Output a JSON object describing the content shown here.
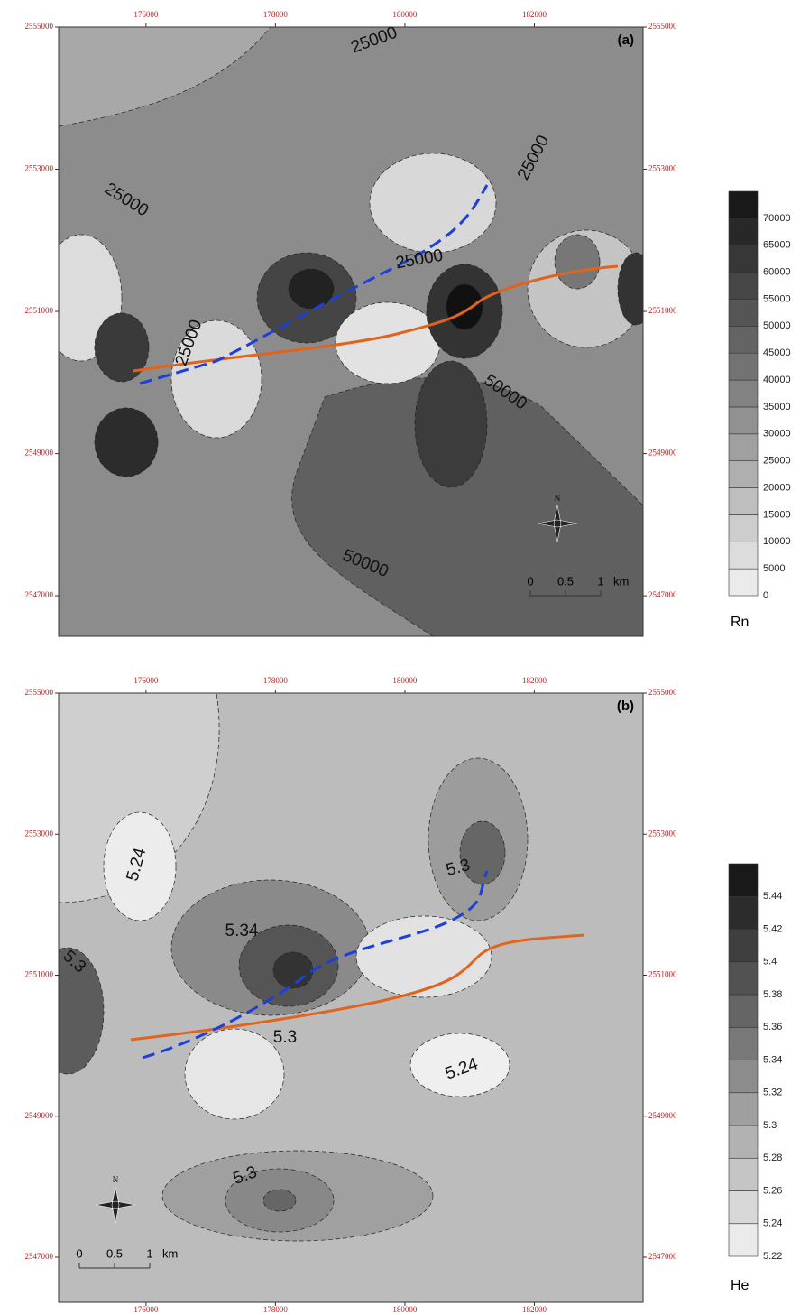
{
  "panels": [
    {
      "label": "(a)",
      "variable": "Rn",
      "xlim": [
        174650,
        183680
      ],
      "ylim": [
        2546430,
        2555000
      ],
      "xticks": [
        176000,
        178000,
        180000,
        182000
      ],
      "yticks": [
        2547000,
        2549000,
        2551000,
        2553000,
        2555000
      ],
      "legend_levels": [
        0,
        5000,
        10000,
        15000,
        20000,
        25000,
        30000,
        35000,
        40000,
        45000,
        50000,
        55000,
        60000,
        65000,
        70000
      ],
      "contour_labels": [
        25000,
        25000,
        25000,
        25000,
        25000,
        50000,
        50000
      ],
      "north": "N",
      "scale_ticks": [
        0,
        0.5,
        1
      ],
      "scale_unit": "km"
    },
    {
      "label": "(b)",
      "variable": "He",
      "xlim": [
        174650,
        183680
      ],
      "ylim": [
        2546360,
        2555000
      ],
      "xticks": [
        176000,
        178000,
        180000,
        182000
      ],
      "yticks": [
        2547000,
        2549000,
        2551000,
        2553000,
        2555000
      ],
      "legend_levels": [
        5.22,
        5.24,
        5.26,
        5.28,
        5.3,
        5.32,
        5.34,
        5.36,
        5.38,
        5.4,
        5.42,
        5.44
      ],
      "contour_labels": [
        5.24,
        5.3,
        5.34,
        5.3,
        5.3,
        5.24,
        5.3
      ],
      "north": "N",
      "scale_ticks": [
        0,
        0.5,
        1
      ],
      "scale_unit": "km"
    }
  ]
}
